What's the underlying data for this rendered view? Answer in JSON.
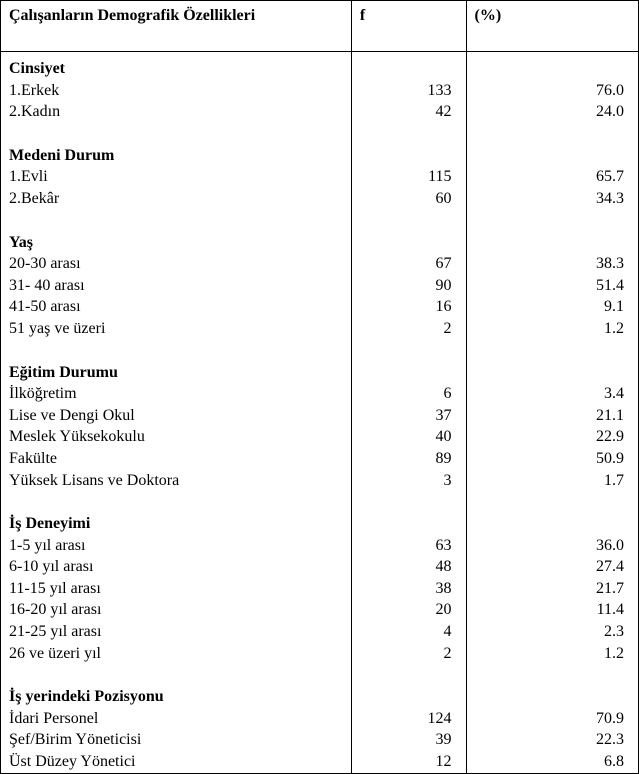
{
  "table": {
    "font_family": "Times New Roman",
    "font_size_pt": 12,
    "border_color": "#000000",
    "background_color": "#ffffff",
    "text_color": "#000000",
    "column_widths_pct": [
      55,
      18,
      27
    ],
    "headers": {
      "label": "Çalışanların Demografik Özellikleri",
      "f": "f",
      "pct": "(%)"
    },
    "sections": [
      {
        "title": "Cinsiyet",
        "rows": [
          {
            "label": "1.Erkek",
            "f": "133",
            "pct": "76.0"
          },
          {
            "label": "2.Kadın",
            "f": "42",
            "pct": "24.0"
          }
        ]
      },
      {
        "title": "Medeni Durum",
        "rows": [
          {
            "label": "1.Evli",
            "f": "115",
            "pct": "65.7"
          },
          {
            "label": "2.Bekâr",
            "f": "60",
            "pct": "34.3"
          }
        ]
      },
      {
        "title": "Yaş",
        "rows": [
          {
            "label": "20-30 arası",
            "f": "67",
            "pct": "38.3"
          },
          {
            "label": "31- 40 arası",
            "f": "90",
            "pct": "51.4"
          },
          {
            "label": "41-50 arası",
            "f": "16",
            "pct": "9.1"
          },
          {
            "label": "51 yaş ve üzeri",
            "f": "2",
            "pct": "1.2"
          }
        ]
      },
      {
        "title": "Eğitim Durumu",
        "rows": [
          {
            "label": "İlköğretim",
            "f": "6",
            "pct": "3.4"
          },
          {
            "label": "Lise ve Dengi Okul",
            "f": "37",
            "pct": "21.1"
          },
          {
            "label": "Meslek Yüksekokulu",
            "f": "40",
            "pct": "22.9"
          },
          {
            "label": "Fakülte",
            "f": "89",
            "pct": "50.9"
          },
          {
            "label": "Yüksek Lisans ve Doktora",
            "f": "3",
            "pct": "1.7"
          }
        ]
      },
      {
        "title": "İş Deneyimi",
        "rows": [
          {
            "label": "1-5 yıl arası",
            "f": "63",
            "pct": "36.0"
          },
          {
            "label": "6-10 yıl arası",
            "f": "48",
            "pct": "27.4"
          },
          {
            "label": "11-15 yıl arası",
            "f": "38",
            "pct": "21.7"
          },
          {
            "label": "16-20 yıl arası",
            "f": "20",
            "pct": "11.4"
          },
          {
            "label": "21-25 yıl arası",
            "f": "4",
            "pct": "2.3"
          },
          {
            "label": "26 ve üzeri yıl",
            "f": "2",
            "pct": "1.2"
          }
        ]
      },
      {
        "title": "İş yerindeki Pozisyonu",
        "rows": [
          {
            "label": "İdari Personel",
            "f": "124",
            "pct": "70.9"
          },
          {
            "label": "Şef/Birim Yöneticisi",
            "f": "39",
            "pct": "22.3"
          },
          {
            "label": "Üst Düzey Yönetici",
            "f": "12",
            "pct": "6.8"
          }
        ]
      }
    ]
  }
}
